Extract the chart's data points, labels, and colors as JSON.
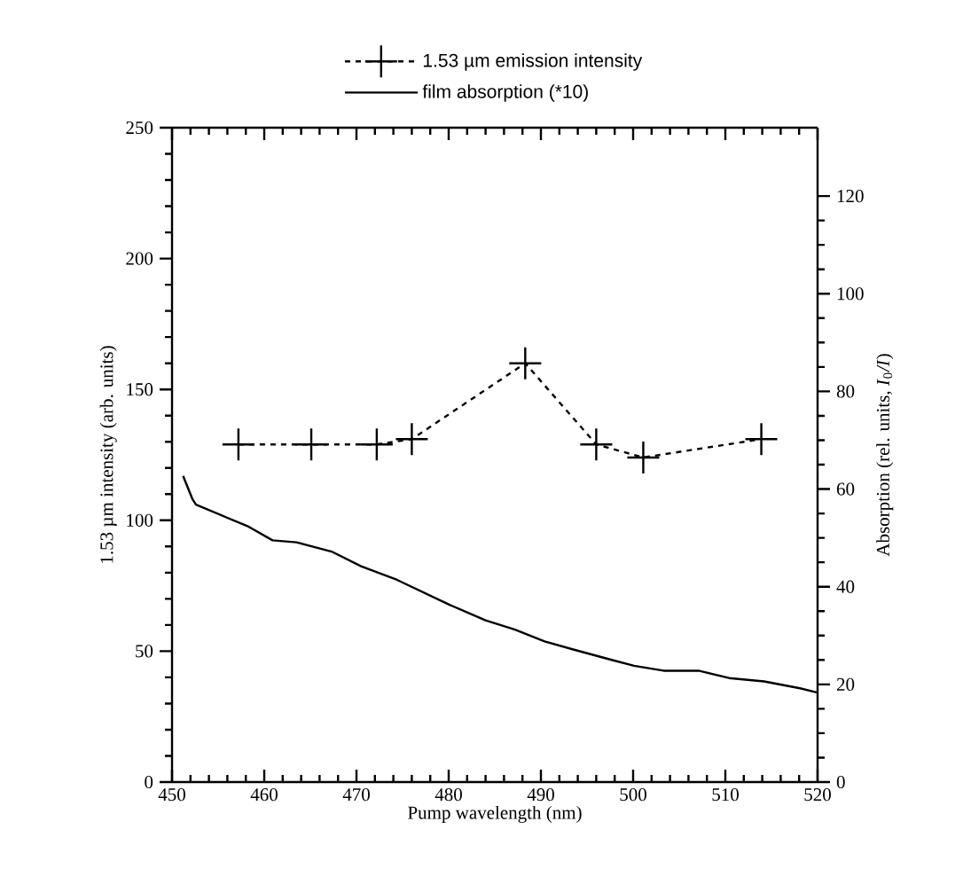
{
  "chart_data": {
    "type": "line",
    "xlabel": "Pump wavelength (nm)",
    "ylabel": "1.53 µm intensity (arb. units)",
    "y2label": "Absorption (rel. units, *I*$_{0}$*/I*)",
    "xlim": [
      450,
      520
    ],
    "xticks": [
      450,
      460,
      470,
      480,
      490,
      500,
      510,
      520
    ],
    "ylim": [
      0,
      250
    ],
    "yticks": [
      0,
      50,
      100,
      150,
      200,
      250
    ],
    "y2lim": [
      0,
      134
    ],
    "y2ticks": [
      0,
      20,
      40,
      60,
      80,
      100,
      120
    ],
    "legend": "top",
    "series": [
      {
        "name": "1.53 µm emission intensity",
        "color": "#000000",
        "marker": "cross",
        "line_style": "dashed",
        "x": [
          457.2,
          465.1,
          472.2,
          476.0,
          488.3,
          496.0,
          501.1,
          513.9
        ],
        "values": [
          129,
          129,
          129,
          131,
          160,
          129,
          124,
          131
        ]
      },
      {
        "name": "film absorption (*10)",
        "color": "#000000",
        "axis": "y2",
        "marker": "none",
        "line_style": "solid",
        "x": [
          451.2,
          452.2,
          452.6,
          458.3,
          460.9,
          463.5,
          467.3,
          470.5,
          474.4,
          480.1,
          484,
          487.2,
          490.4,
          493.6,
          497.5,
          500.1,
          503.3,
          507.1,
          510.4,
          514.2,
          518.1,
          520
        ],
        "values": [
          62.7,
          58,
          56.8,
          52.3,
          49.5,
          49.1,
          47.2,
          44.2,
          41.4,
          36.3,
          33.1,
          31.2,
          28.8,
          27.1,
          25.1,
          23.8,
          22.8,
          22.8,
          21.3,
          20.6,
          19.2,
          18.3
        ]
      }
    ]
  }
}
